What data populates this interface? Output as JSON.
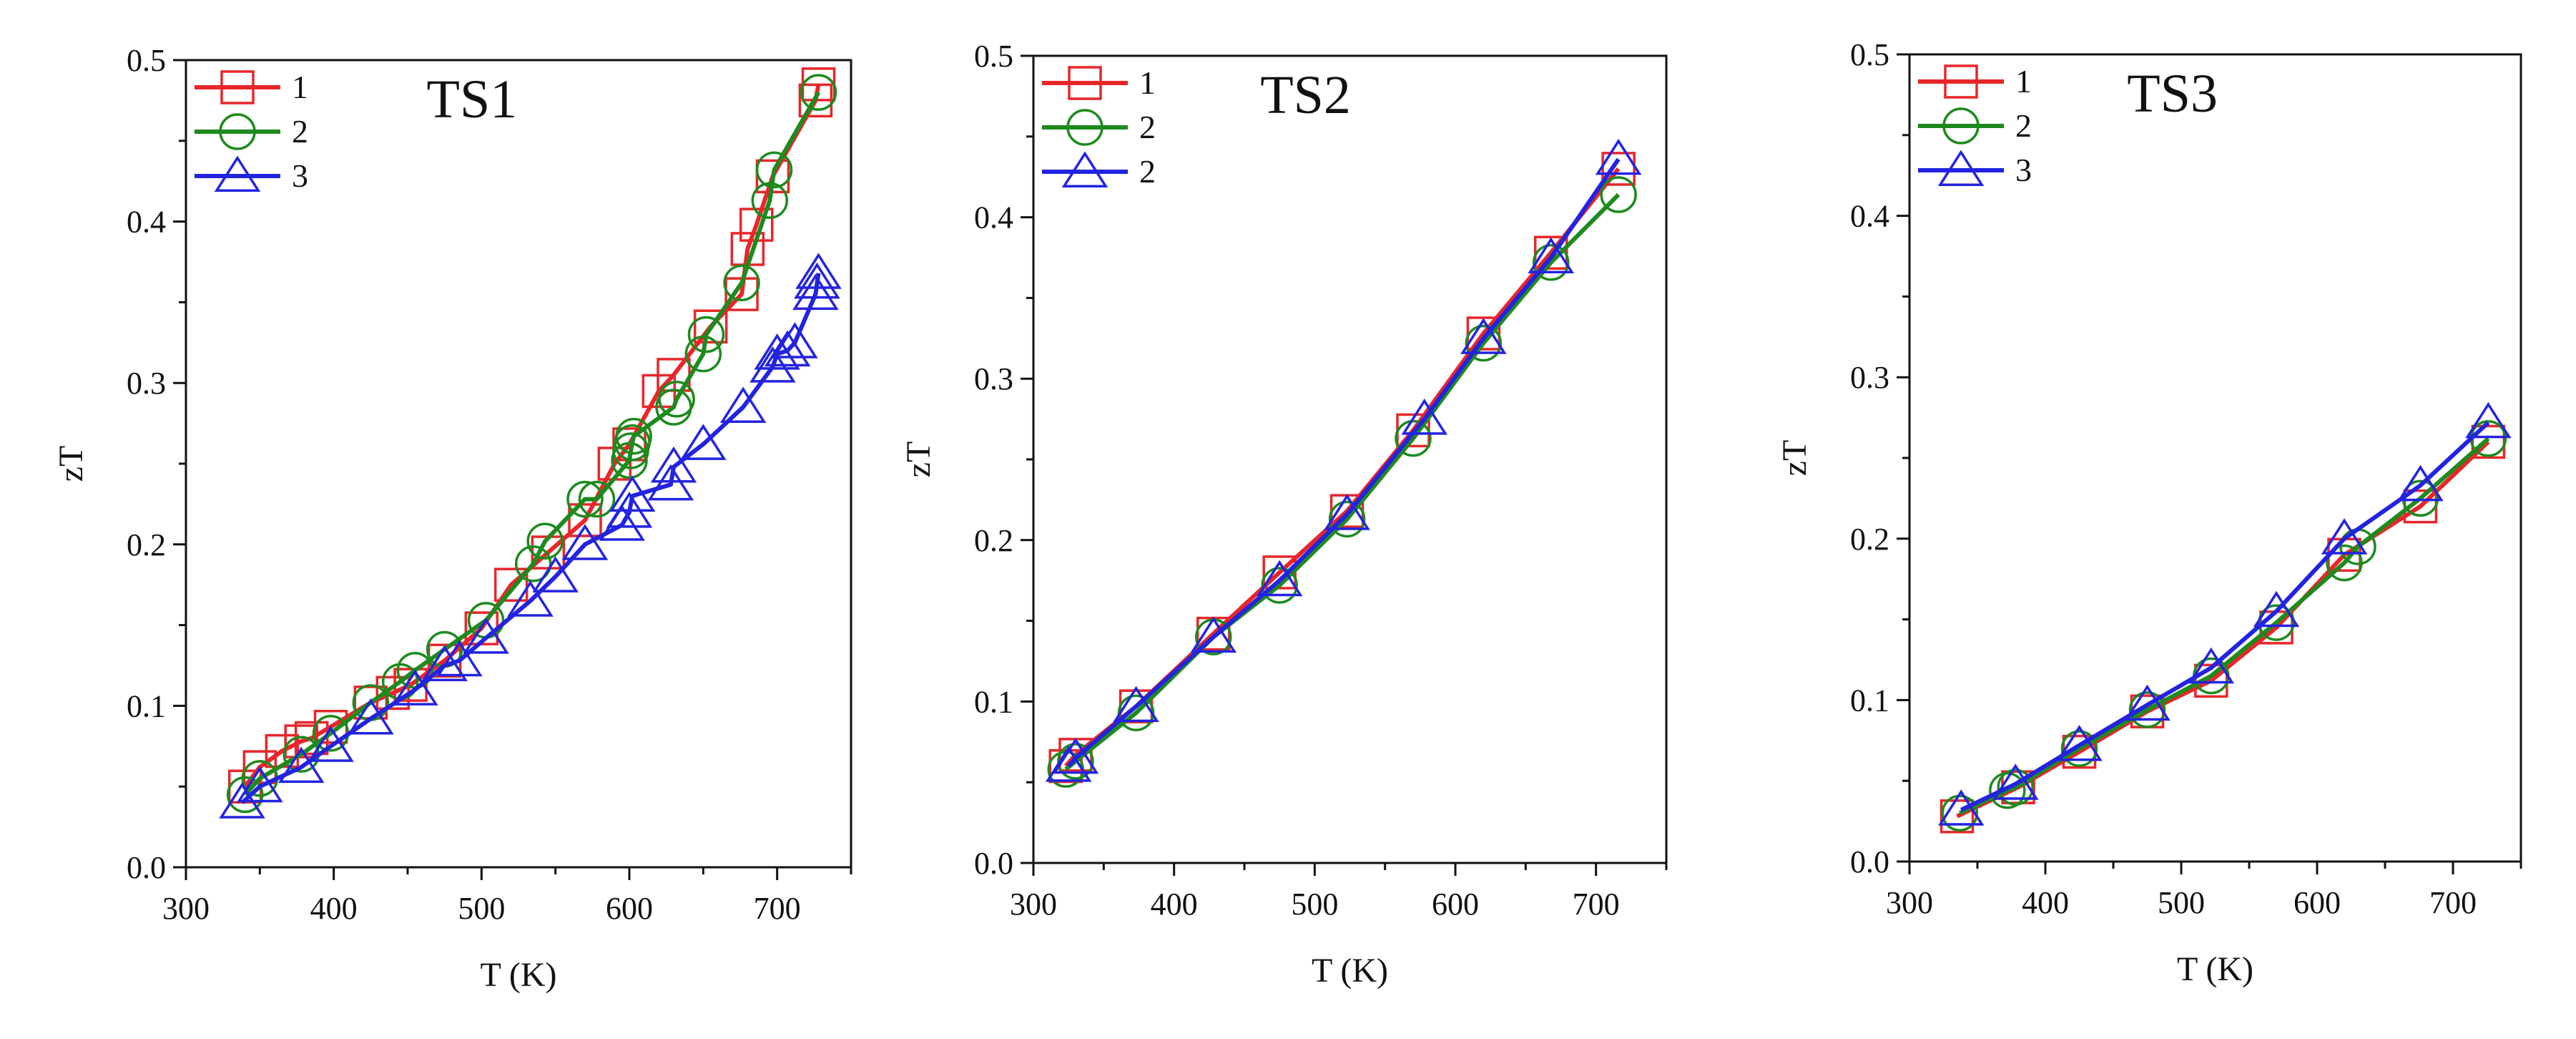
{
  "chart_data": [
    {
      "type": "line",
      "title": "TS1",
      "xlabel": "T (K)",
      "ylabel": "zT",
      "xlim": [
        300,
        750
      ],
      "ylim": [
        0.0,
        0.5
      ],
      "xticks": [
        300,
        400,
        500,
        600,
        700
      ],
      "yticks": [
        0.0,
        0.1,
        0.2,
        0.3,
        0.4,
        0.5
      ],
      "xtick_labels": [
        "300",
        "400",
        "500",
        "600",
        "700"
      ],
      "ytick_labels": [
        "0.0",
        "0.1",
        "0.2",
        "0.3",
        "0.4",
        "0.5"
      ],
      "legend_position": "top-left",
      "series": [
        {
          "name": "1",
          "marker": "square",
          "color": "#e8262a",
          "x": [
            340,
            350,
            365,
            378,
            385,
            398,
            425,
            440,
            452,
            475,
            500,
            520,
            545,
            570,
            590,
            600,
            620,
            630,
            655,
            676,
            680,
            686,
            697,
            726,
            728
          ],
          "y": [
            0.05,
            0.062,
            0.072,
            0.078,
            0.08,
            0.087,
            0.102,
            0.108,
            0.113,
            0.128,
            0.148,
            0.175,
            0.195,
            0.215,
            0.25,
            0.262,
            0.295,
            0.305,
            0.335,
            0.355,
            0.383,
            0.398,
            0.428,
            0.475,
            0.485
          ]
        },
        {
          "name": "2",
          "marker": "circle",
          "color": "#1e8a1e",
          "x": [
            340,
            350,
            378,
            398,
            425,
            445,
            455,
            475,
            503,
            535,
            543,
            570,
            578,
            600,
            601,
            602,
            603,
            630,
            632,
            650,
            652,
            676,
            695,
            698,
            728
          ],
          "y": [
            0.045,
            0.055,
            0.07,
            0.083,
            0.102,
            0.115,
            0.122,
            0.135,
            0.153,
            0.188,
            0.202,
            0.228,
            0.228,
            0.252,
            0.258,
            0.263,
            0.267,
            0.285,
            0.29,
            0.318,
            0.33,
            0.362,
            0.413,
            0.432,
            0.48
          ]
        },
        {
          "name": "3",
          "marker": "triangle",
          "color": "#2323e0",
          "x": [
            338,
            350,
            378,
            398,
            425,
            455,
            475,
            485,
            503,
            533,
            550,
            570,
            595,
            600,
            602,
            628,
            630,
            650,
            677,
            697,
            700,
            707,
            712,
            726,
            727,
            728
          ],
          "y": [
            0.04,
            0.05,
            0.062,
            0.075,
            0.092,
            0.11,
            0.125,
            0.128,
            0.142,
            0.165,
            0.18,
            0.2,
            0.212,
            0.22,
            0.23,
            0.237,
            0.248,
            0.262,
            0.285,
            0.31,
            0.318,
            0.32,
            0.325,
            0.355,
            0.362,
            0.368
          ]
        }
      ]
    },
    {
      "type": "line",
      "title": "TS2",
      "xlabel": "T (K)",
      "ylabel": "zT",
      "xlim": [
        300,
        750
      ],
      "ylim": [
        0.0,
        0.5
      ],
      "xticks": [
        300,
        400,
        500,
        600,
        700
      ],
      "yticks": [
        0.0,
        0.1,
        0.2,
        0.3,
        0.4,
        0.5
      ],
      "xtick_labels": [
        "300",
        "400",
        "500",
        "600",
        "700"
      ],
      "ytick_labels": [
        "0.0",
        "0.1",
        "0.2",
        "0.3",
        "0.4",
        "0.5"
      ],
      "legend_position": "top-left",
      "series": [
        {
          "name": "1",
          "marker": "square",
          "color": "#e8262a",
          "x": [
            323,
            330,
            373,
            428,
            475,
            523,
            570,
            620,
            668,
            716
          ],
          "y": [
            0.06,
            0.067,
            0.097,
            0.142,
            0.18,
            0.218,
            0.268,
            0.328,
            0.378,
            0.43
          ]
        },
        {
          "name": "2",
          "marker": "circle",
          "color": "#1e8a1e",
          "x": [
            323,
            330,
            373,
            428,
            475,
            523,
            570,
            620,
            668,
            716
          ],
          "y": [
            0.058,
            0.063,
            0.093,
            0.14,
            0.172,
            0.213,
            0.263,
            0.322,
            0.372,
            0.414
          ]
        },
        {
          "name": "2",
          "marker": "triangle",
          "color": "#2323e0",
          "x": [
            325,
            330,
            373,
            428,
            475,
            523,
            578,
            620,
            668,
            716
          ],
          "y": [
            0.06,
            0.065,
            0.097,
            0.14,
            0.175,
            0.216,
            0.275,
            0.325,
            0.375,
            0.436
          ]
        }
      ]
    },
    {
      "type": "line",
      "title": "TS3",
      "xlabel": "T (K)",
      "ylabel": "zT",
      "xlim": [
        300,
        750
      ],
      "ylim": [
        0.0,
        0.5
      ],
      "xticks": [
        300,
        400,
        500,
        600,
        700
      ],
      "yticks": [
        0.0,
        0.1,
        0.2,
        0.3,
        0.4,
        0.5
      ],
      "xtick_labels": [
        "300",
        "400",
        "500",
        "600",
        "700"
      ],
      "ytick_labels": [
        "0.0",
        "0.1",
        "0.2",
        "0.3",
        "0.4",
        "0.5"
      ],
      "legend_position": "top-left",
      "series": [
        {
          "name": "1",
          "marker": "square",
          "color": "#e8262a",
          "x": [
            335,
            380,
            425,
            475,
            522,
            570,
            620,
            676,
            726
          ],
          "y": [
            0.028,
            0.046,
            0.068,
            0.093,
            0.112,
            0.145,
            0.19,
            0.22,
            0.26
          ]
        },
        {
          "name": "2",
          "marker": "circle",
          "color": "#1e8a1e",
          "x": [
            337,
            372,
            378,
            425,
            475,
            522,
            570,
            620,
            630,
            676,
            726
          ],
          "y": [
            0.03,
            0.044,
            0.046,
            0.07,
            0.094,
            0.115,
            0.148,
            0.185,
            0.195,
            0.225,
            0.262
          ]
        },
        {
          "name": "3",
          "marker": "triangle",
          "color": "#2323e0",
          "x": [
            338,
            378,
            425,
            475,
            522,
            570,
            620,
            676,
            726
          ],
          "y": [
            0.032,
            0.048,
            0.072,
            0.097,
            0.12,
            0.155,
            0.2,
            0.233,
            0.272
          ]
        }
      ]
    }
  ]
}
